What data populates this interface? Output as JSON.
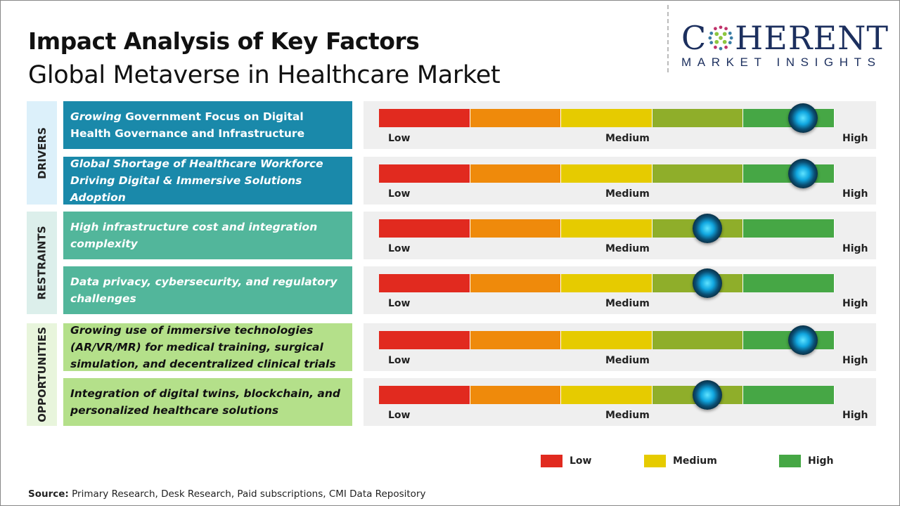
{
  "header": {
    "title": "Impact Analysis of Key Factors",
    "subtitle": "Global Metaverse in Healthcare Market"
  },
  "logo": {
    "line1": "COHERENT",
    "line2": "MARKET INSIGHTS"
  },
  "colors": {
    "low": "#e12a1f",
    "low_mid": "#ef8a0b",
    "medium": "#e6cb00",
    "mid_high": "#8fae2a",
    "high": "#46a745",
    "drivers": "#1a89aa",
    "restraints": "#52b69b",
    "opportunities": "#b4e08a"
  },
  "chart_data": {
    "type": "gauge",
    "scale": {
      "min_label": "Low",
      "mid_label": "Medium",
      "max_label": "High",
      "range": [
        0,
        1
      ]
    },
    "categories": [
      {
        "name": "DRIVERS",
        "factors": [
          {
            "label_italic": "Growing",
            "label": " Government Focus on Digital Health Governance and Infrastructure",
            "impact": 0.93
          },
          {
            "label_italic": "Global Shortage of Healthcare Workforce Driving Digital & Immersive Solutions Adoption",
            "label": "",
            "impact": 0.93
          }
        ]
      },
      {
        "name": "RESTRAINTS",
        "factors": [
          {
            "label_italic": "High infrastructure cost and integration complexity",
            "label": "",
            "impact": 0.72
          },
          {
            "label_italic": "Data privacy, cybersecurity, and regulatory challenges",
            "label": "",
            "impact": 0.72
          }
        ]
      },
      {
        "name": "OPPORTUNITIES",
        "factors": [
          {
            "label_italic": "Growing use of immersive technologies (AR/VR/MR) for medical training, surgical simulation, and decentralized clinical trials",
            "label": "",
            "impact": 0.93
          },
          {
            "label_italic": "Integration of digital twins, blockchain, and personalized healthcare solutions",
            "label": "",
            "impact": 0.72
          }
        ]
      }
    ],
    "legend": [
      {
        "label": "Low",
        "color": "#e12a1f"
      },
      {
        "label": "Medium",
        "color": "#e6cb00"
      },
      {
        "label": "High",
        "color": "#46a745"
      }
    ]
  },
  "footer": {
    "source_label": "Source:",
    "source_text": " Primary Research, Desk Research, Paid subscriptions, CMI Data Repository"
  }
}
